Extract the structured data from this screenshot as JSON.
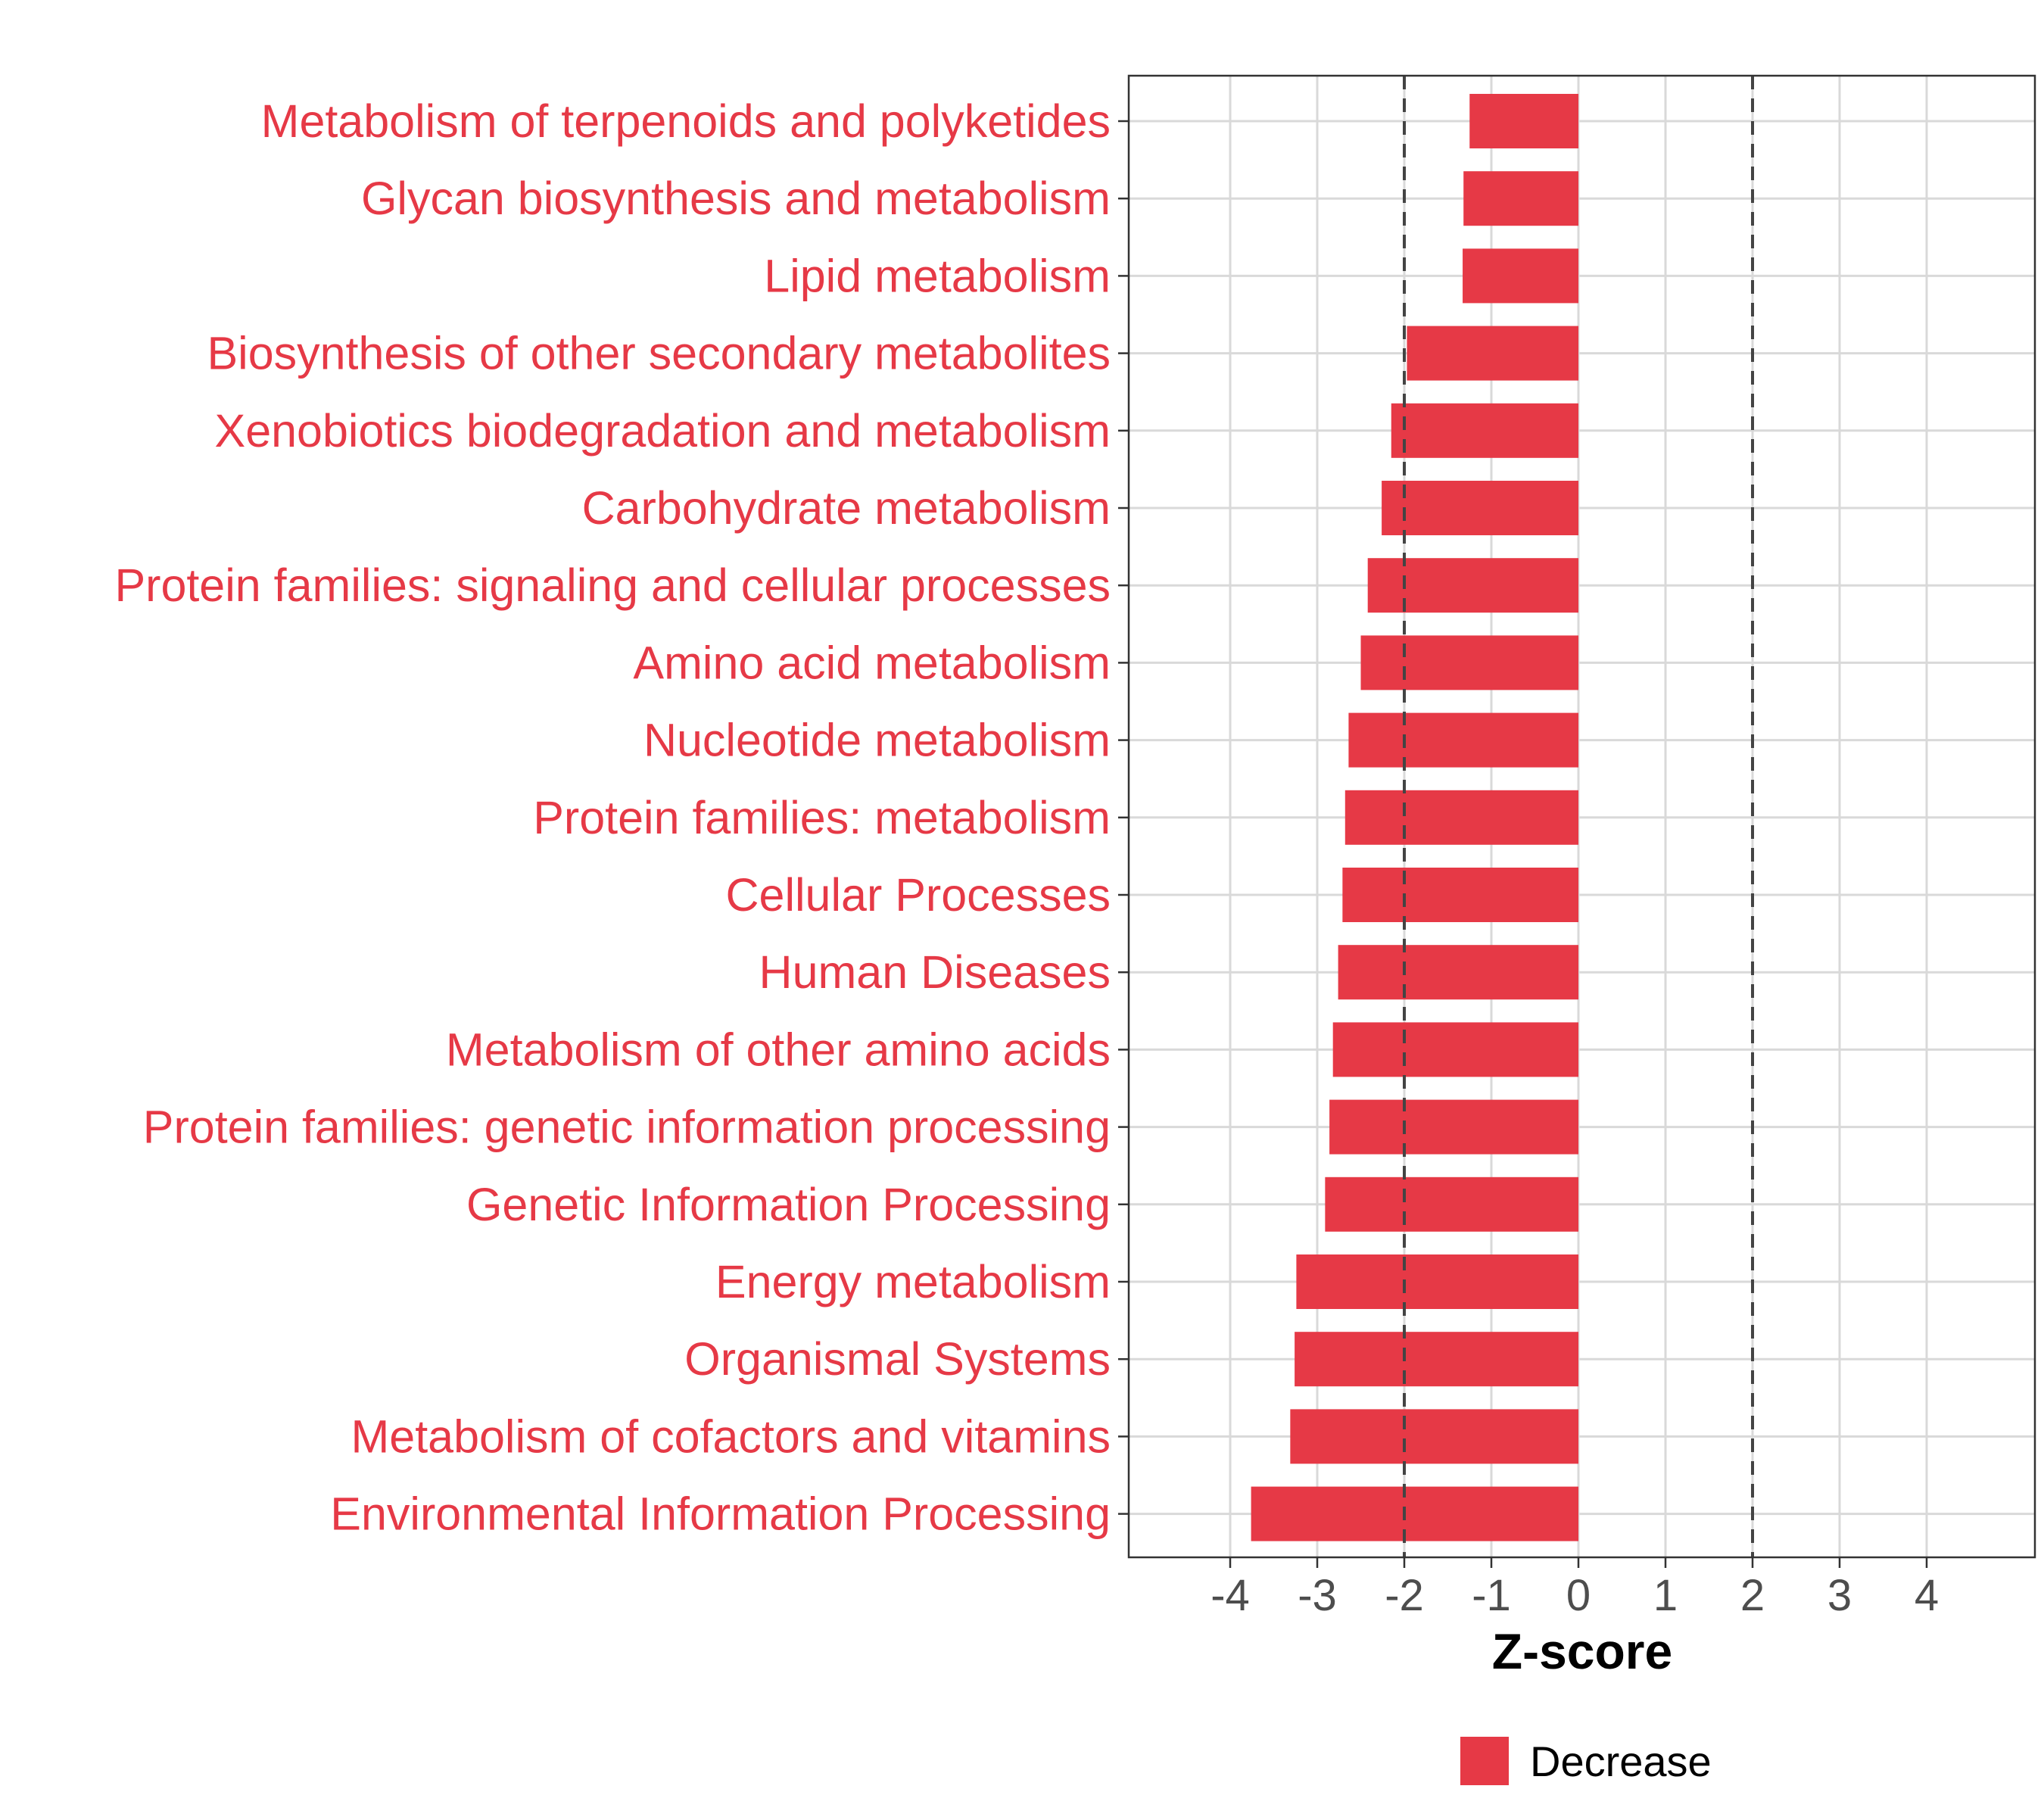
{
  "chart_data": {
    "type": "bar",
    "orientation": "horizontal",
    "categories": [
      "Metabolism of terpenoids and polyketides",
      "Glycan biosynthesis and metabolism",
      "Lipid metabolism",
      "Biosynthesis of other secondary metabolites",
      "Xenobiotics biodegradation and metabolism",
      "Carbohydrate metabolism",
      "Protein families: signaling and cellular processes",
      "Amino acid metabolism",
      "Nucleotide metabolism",
      "Protein families: metabolism",
      "Cellular Processes",
      "Human Diseases",
      "Metabolism of other amino acids",
      "Protein families: genetic information processing",
      "Genetic Information Processing",
      "Energy metabolism",
      "Organismal Systems",
      "Metabolism of cofactors and vitamins",
      "Environmental Information Processing"
    ],
    "series": [
      {
        "name": "Decrease",
        "color": "#E63946",
        "values": [
          -1.25,
          -1.32,
          -1.33,
          -1.97,
          -2.15,
          -2.26,
          -2.42,
          -2.5,
          -2.64,
          -2.68,
          -2.71,
          -2.76,
          -2.82,
          -2.86,
          -2.91,
          -3.24,
          -3.26,
          -3.31,
          -3.76
        ]
      }
    ],
    "xlabel": "Z-score",
    "ylabel": "",
    "xlim": [
      -5.2,
      5.2
    ],
    "xticks": [
      "-4",
      "-3",
      "-2",
      "-1",
      "0",
      "1",
      "2",
      "3",
      "4"
    ],
    "reference_lines": [
      -2,
      2
    ],
    "grid": true,
    "legend": {
      "position": "bottom",
      "entries": [
        "Decrease"
      ]
    },
    "label_color": "#E63946"
  }
}
